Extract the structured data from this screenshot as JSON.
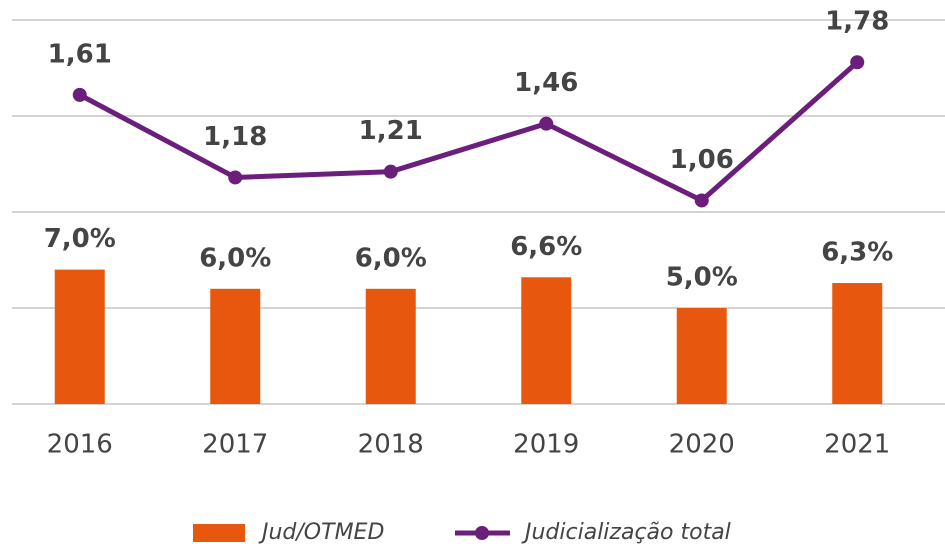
{
  "chart_data": {
    "type": "bar_line",
    "categories": [
      "2016",
      "2017",
      "2018",
      "2019",
      "2020",
      "2021"
    ],
    "series": [
      {
        "name": "Jud/OTMED",
        "type": "bar",
        "color": "#e8570e",
        "values": [
          7.0,
          6.0,
          6.0,
          6.6,
          5.0,
          6.3
        ],
        "value_labels": [
          "7,0%",
          "6,0%",
          "6,0%",
          "6,6%",
          "5,0%",
          "6,3%"
        ]
      },
      {
        "name": "Judicialização total",
        "type": "line",
        "axis": "y2",
        "color": "#6b1e7c",
        "values": [
          1.61,
          1.18,
          1.21,
          1.46,
          1.06,
          1.78
        ],
        "value_labels": [
          "1,61",
          "1,18",
          "1,21",
          "1,46",
          "1,06",
          "1,78"
        ]
      }
    ],
    "ylim": [
      0,
      20
    ],
    "yticks": [
      0,
      5,
      10,
      15,
      20
    ],
    "y2lim": [
      0,
      2
    ],
    "grid": true,
    "legend": "bottom"
  }
}
